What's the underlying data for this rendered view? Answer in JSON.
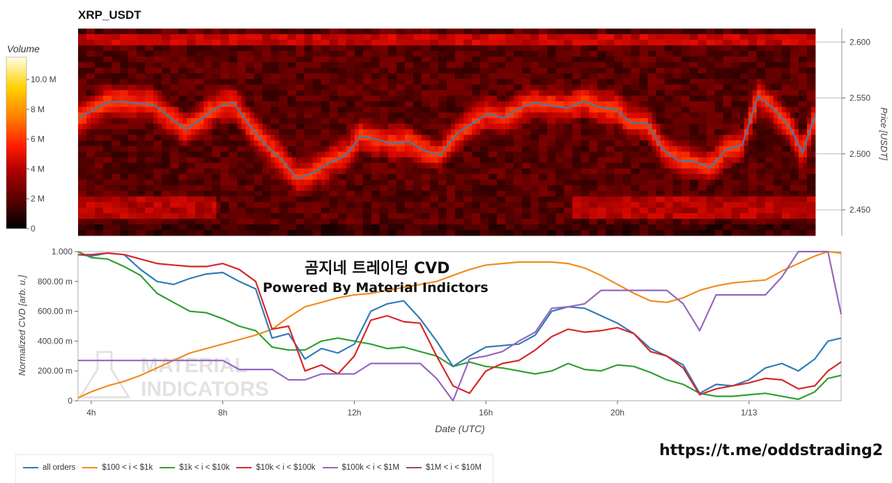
{
  "title": "XRP_USDT",
  "colorbar": {
    "title": "Volume",
    "ticks": [
      "10.0 M",
      "8 M",
      "6 M",
      "4 M",
      "2 M",
      "0"
    ],
    "tick_values": [
      10,
      8,
      6,
      4,
      2,
      0
    ]
  },
  "overlay": {
    "line1": "곰지네 트레이딩 CVD",
    "line2": "Powered By Material Indictors"
  },
  "watermark": [
    "MATERIAL",
    "INDICATORS"
  ],
  "link": "https://t.me/oddstrading2",
  "chart_data": [
    {
      "type": "heatmap",
      "title": "XRP_USDT",
      "ylabel": "Price [USDT]",
      "yticks": [
        "2.600",
        "2.550",
        "2.500",
        "2.450"
      ],
      "ytick_values": [
        2.6,
        2.55,
        2.5,
        2.45
      ],
      "ylim": [
        2.427,
        2.612
      ],
      "xlim_hours": [
        3.6,
        26.8
      ],
      "colorscale": [
        "#000000",
        "#5a0000",
        "#b00000",
        "#ff1a00",
        "#ff7a00",
        "#ffd000",
        "#ffffd0"
      ],
      "volume_range_millions": [
        0,
        11.5
      ],
      "price_series": {
        "name": "Price",
        "color": "#3b7dbf",
        "x_hours": [
          3.6,
          4.0,
          4.5,
          5.0,
          5.5,
          6.0,
          6.5,
          7.0,
          7.5,
          8.0,
          8.5,
          9.0,
          9.5,
          10.0,
          10.5,
          11.0,
          11.5,
          12.0,
          12.5,
          13.0,
          13.5,
          14.0,
          14.5,
          15.0,
          15.5,
          16.0,
          16.5,
          17.0,
          17.5,
          18.0,
          18.5,
          19.0,
          19.5,
          20.0,
          20.5,
          21.0,
          21.5,
          22.0,
          22.5,
          23.0,
          23.5,
          24.0,
          24.5,
          25.0,
          25.5,
          26.0,
          26.4,
          26.8
        ],
        "values": [
          2.532,
          2.538,
          2.546,
          2.547,
          2.545,
          2.544,
          2.532,
          2.522,
          2.532,
          2.542,
          2.546,
          2.525,
          2.508,
          2.495,
          2.478,
          2.483,
          2.492,
          2.498,
          2.516,
          2.513,
          2.509,
          2.511,
          2.503,
          2.499,
          2.518,
          2.527,
          2.536,
          2.532,
          2.541,
          2.546,
          2.543,
          2.541,
          2.547,
          2.542,
          2.54,
          2.528,
          2.528,
          2.504,
          2.494,
          2.493,
          2.488,
          2.504,
          2.508,
          2.552,
          2.54,
          2.524,
          2.501,
          2.535
        ]
      }
    },
    {
      "type": "line",
      "xlabel": "Date (UTC)",
      "ylabel": "Normalized CVD [arb. u.]",
      "xticks": [
        "4h",
        "8h",
        "12h",
        "16h",
        "20h",
        "1/13"
      ],
      "xtick_hours": [
        4,
        8,
        12,
        16,
        20,
        24
      ],
      "yticks": [
        "1.000",
        "800.00 m",
        "600.00 m",
        "400.00 m",
        "200.00 m",
        "0"
      ],
      "ytick_values": [
        1.0,
        0.8,
        0.6,
        0.4,
        0.2,
        0.0
      ],
      "ylim": [
        0,
        1
      ],
      "xlim_hours": [
        3.6,
        26.8
      ],
      "x_hours": [
        3.6,
        4.0,
        4.5,
        5.0,
        5.5,
        6.0,
        6.5,
        7.0,
        7.5,
        8.0,
        8.5,
        9.0,
        9.5,
        10.0,
        10.5,
        11.0,
        11.5,
        12.0,
        12.5,
        13.0,
        13.5,
        14.0,
        14.5,
        15.0,
        15.5,
        16.0,
        16.5,
        17.0,
        17.5,
        18.0,
        18.5,
        19.0,
        19.5,
        20.0,
        20.5,
        21.0,
        21.5,
        22.0,
        22.5,
        23.0,
        23.5,
        24.0,
        24.5,
        25.0,
        25.5,
        26.0,
        26.4,
        26.8
      ],
      "series": [
        {
          "name": "all orders",
          "color": "#2f7bb8",
          "values": [
            0.98,
            0.97,
            0.99,
            0.98,
            0.88,
            0.8,
            0.78,
            0.82,
            0.85,
            0.86,
            0.8,
            0.75,
            0.42,
            0.45,
            0.28,
            0.35,
            0.32,
            0.38,
            0.6,
            0.65,
            0.67,
            0.55,
            0.4,
            0.23,
            0.3,
            0.36,
            0.37,
            0.38,
            0.44,
            0.6,
            0.63,
            0.62,
            0.57,
            0.52,
            0.45,
            0.35,
            0.3,
            0.24,
            0.05,
            0.11,
            0.1,
            0.14,
            0.22,
            0.25,
            0.2,
            0.28,
            0.4,
            0.42
          ]
        },
        {
          "name": "$100 < i < $1k",
          "color": "#f28b1d",
          "values": [
            0.02,
            0.06,
            0.1,
            0.13,
            0.17,
            0.22,
            0.27,
            0.32,
            0.35,
            0.38,
            0.41,
            0.44,
            0.48,
            0.56,
            0.63,
            0.66,
            0.69,
            0.71,
            0.72,
            0.74,
            0.76,
            0.78,
            0.8,
            0.84,
            0.88,
            0.91,
            0.92,
            0.93,
            0.93,
            0.93,
            0.92,
            0.89,
            0.84,
            0.78,
            0.72,
            0.67,
            0.66,
            0.69,
            0.74,
            0.77,
            0.79,
            0.8,
            0.81,
            0.87,
            0.92,
            0.97,
            1.0,
            0.99
          ]
        },
        {
          "name": "$1k < i < $10k",
          "color": "#2fa02f",
          "values": [
            1.0,
            0.96,
            0.95,
            0.9,
            0.84,
            0.72,
            0.66,
            0.6,
            0.59,
            0.55,
            0.5,
            0.47,
            0.36,
            0.34,
            0.34,
            0.4,
            0.42,
            0.4,
            0.38,
            0.35,
            0.36,
            0.33,
            0.3,
            0.23,
            0.26,
            0.23,
            0.22,
            0.2,
            0.18,
            0.2,
            0.25,
            0.21,
            0.2,
            0.24,
            0.23,
            0.19,
            0.14,
            0.11,
            0.05,
            0.03,
            0.03,
            0.04,
            0.05,
            0.03,
            0.01,
            0.06,
            0.15,
            0.17
          ]
        },
        {
          "name": "$10k < i < $100k",
          "color": "#d62728",
          "values": [
            0.98,
            0.98,
            0.99,
            0.98,
            0.95,
            0.92,
            0.91,
            0.9,
            0.9,
            0.92,
            0.88,
            0.8,
            0.48,
            0.5,
            0.2,
            0.24,
            0.18,
            0.3,
            0.54,
            0.57,
            0.53,
            0.52,
            0.3,
            0.1,
            0.05,
            0.2,
            0.25,
            0.27,
            0.34,
            0.43,
            0.48,
            0.46,
            0.47,
            0.49,
            0.45,
            0.33,
            0.3,
            0.22,
            0.04,
            0.08,
            0.1,
            0.12,
            0.15,
            0.14,
            0.08,
            0.1,
            0.2,
            0.26
          ]
        },
        {
          "name": "$100k < i < $1M",
          "color": "#9467bd",
          "values": [
            0.27,
            0.27,
            0.27,
            0.27,
            0.27,
            0.27,
            0.27,
            0.27,
            0.27,
            0.27,
            0.21,
            0.21,
            0.21,
            0.14,
            0.14,
            0.18,
            0.18,
            0.18,
            0.25,
            0.25,
            0.25,
            0.25,
            0.15,
            0.0,
            0.28,
            0.3,
            0.33,
            0.4,
            0.46,
            0.62,
            0.63,
            0.65,
            0.74,
            0.74,
            0.74,
            0.74,
            0.74,
            0.65,
            0.47,
            0.71,
            0.71,
            0.71,
            0.71,
            0.83,
            1.0,
            1.0,
            1.0,
            0.58
          ]
        },
        {
          "name": "$1M < i < $10M",
          "color": "#8c564b",
          "values": []
        }
      ]
    }
  ]
}
